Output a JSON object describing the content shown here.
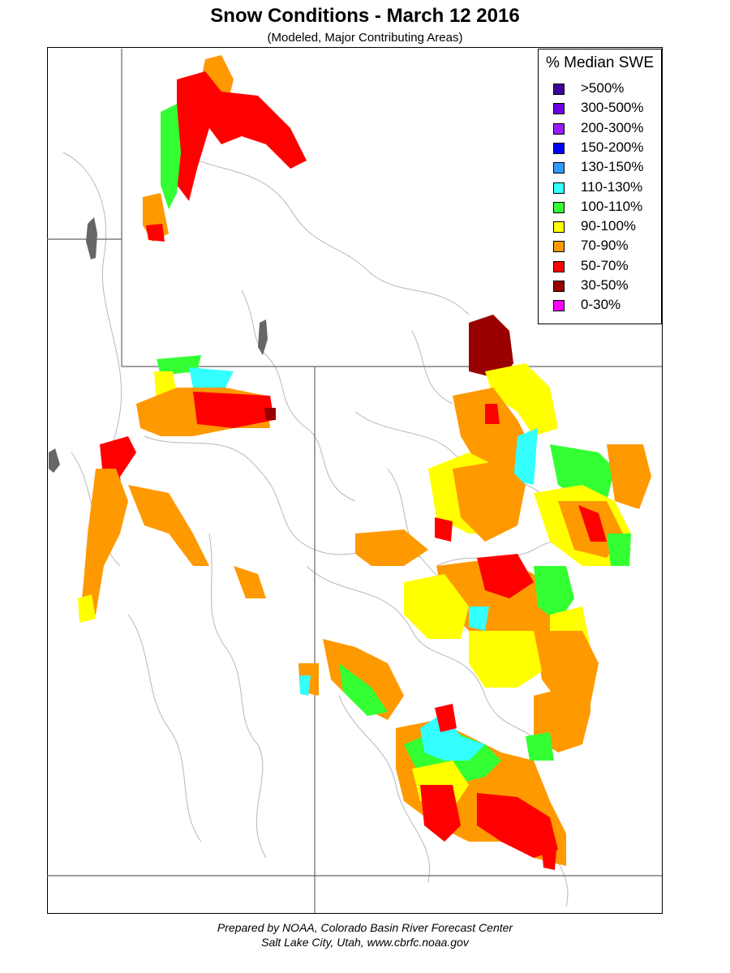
{
  "title": "Snow Conditions - March 12 2016",
  "subtitle": "(Modeled, Major Contributing Areas)",
  "legend": {
    "title": "% Median SWE",
    "items": [
      {
        "label": ">500%",
        "color": "#3d0099"
      },
      {
        "label": "300-500%",
        "color": "#6a00e0"
      },
      {
        "label": "200-300%",
        "color": "#9a1aff"
      },
      {
        "label": "150-200%",
        "color": "#0000ff"
      },
      {
        "label": "130-150%",
        "color": "#3399ff"
      },
      {
        "label": "110-130%",
        "color": "#33ffff"
      },
      {
        "label": "100-110%",
        "color": "#33ff33"
      },
      {
        "label": "90-100%",
        "color": "#ffff00"
      },
      {
        "label": "70-90%",
        "color": "#ff9900"
      },
      {
        "label": "50-70%",
        "color": "#ff0000"
      },
      {
        "label": "30-50%",
        "color": "#990000"
      },
      {
        "label": "0-30%",
        "color": "#ff00ff"
      }
    ]
  },
  "credit": {
    "line1": "Prepared by NOAA, Colorado Basin River Forecast Center",
    "line2": "Salt Lake City, Utah, www.cbrfc.noaa.gov"
  },
  "colors": {
    "state_border": "#666666",
    "basin_line": "#b0b0b0",
    "water": "#666666"
  }
}
